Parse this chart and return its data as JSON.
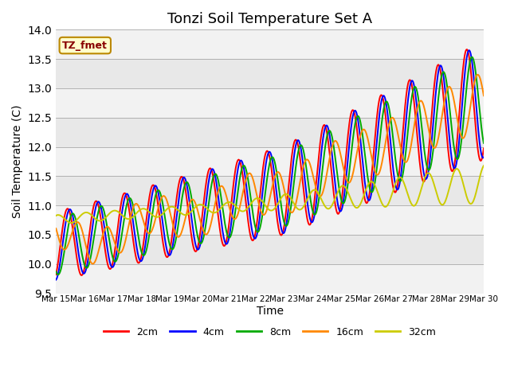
{
  "title": "Tonzi Soil Temperature Set A",
  "xlabel": "Time",
  "ylabel": "Soil Temperature (C)",
  "ylim": [
    9.5,
    14.0
  ],
  "yticks": [
    9.5,
    10.0,
    10.5,
    11.0,
    11.5,
    12.0,
    12.5,
    13.0,
    13.5,
    14.0
  ],
  "legend_label": "TZ_fmet",
  "series": {
    "2cm": {
      "color": "#FF0000",
      "label": "2cm"
    },
    "4cm": {
      "color": "#0000FF",
      "label": "4cm"
    },
    "8cm": {
      "color": "#00AA00",
      "label": "8cm"
    },
    "16cm": {
      "color": "#FF8800",
      "label": "16cm"
    },
    "32cm": {
      "color": "#CCCC00",
      "label": "32cm"
    }
  },
  "xtick_labels": [
    "Mar 15",
    "Mar 16",
    "Mar 17",
    "Mar 18",
    "Mar 19",
    "Mar 20",
    "Mar 21",
    "Mar 22",
    "Mar 23",
    "Mar 24",
    "Mar 25",
    "Mar 26",
    "Mar 27",
    "Mar 28",
    "Mar 29",
    "Mar 30"
  ],
  "background_color": "#E8E8E8",
  "stripe_color": "#F2F2F2",
  "title_fontsize": 13,
  "axis_label_fontsize": 10
}
